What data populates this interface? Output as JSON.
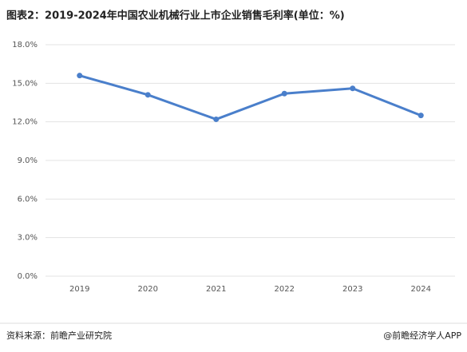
{
  "chart_data": {
    "type": "line",
    "title": "图表2：2019-2024年中国农业机械行业上市企业销售毛利率(单位：%)",
    "categories": [
      "2019",
      "2020",
      "2021",
      "2022",
      "2023",
      "2024"
    ],
    "values": [
      15.6,
      14.1,
      12.2,
      14.2,
      14.6,
      12.5
    ],
    "color": "#4a7fcb",
    "ylim": [
      0,
      18
    ],
    "yticks": [
      {
        "value": 0,
        "label": "0.0%"
      },
      {
        "value": 3,
        "label": "3.0%"
      },
      {
        "value": 6,
        "label": "6.0%"
      },
      {
        "value": 9,
        "label": "9.0%"
      },
      {
        "value": 12,
        "label": "12.0%"
      },
      {
        "value": 15,
        "label": "15.0%"
      },
      {
        "value": 18,
        "label": "18.0%"
      }
    ],
    "grid": true,
    "source": "资料来源：前瞻产业研究院",
    "credit": "@前瞻经济学人APP"
  }
}
